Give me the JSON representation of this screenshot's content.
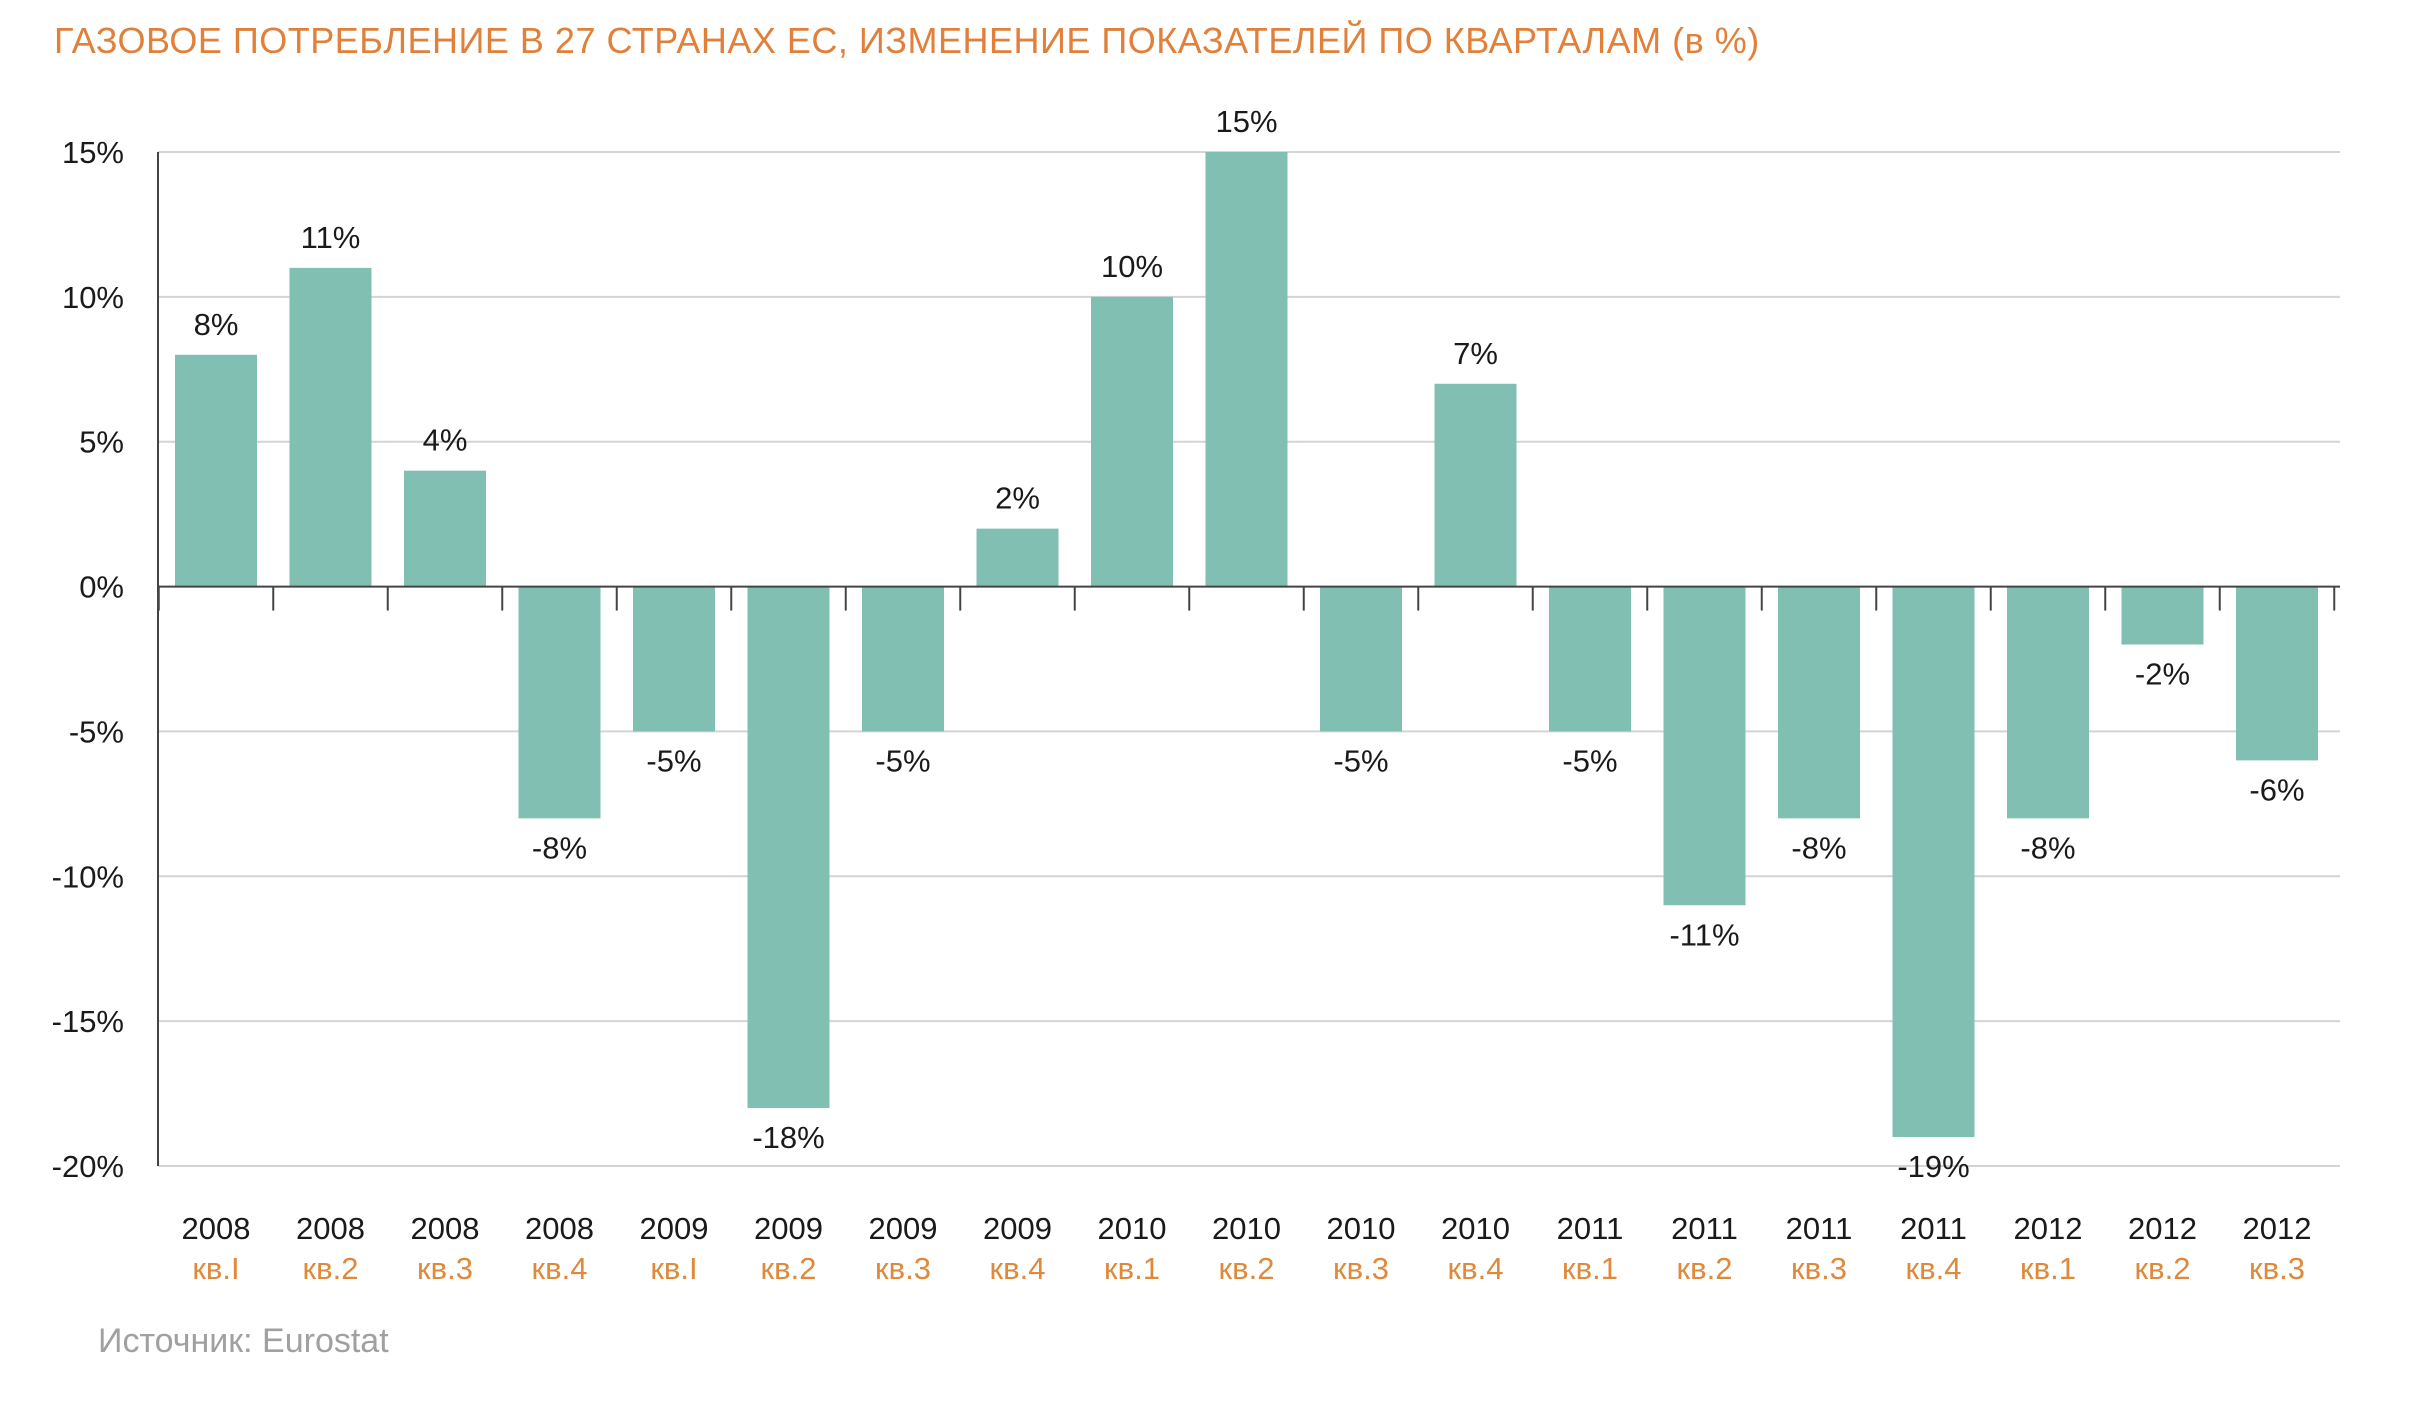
{
  "title": "ГАЗОВОЕ ПОТРЕБЛЕНИЕ В 27 СТРАНАХ ЕС, ИЗМЕНЕНИЕ ПОКАЗАТЕЛЕЙ ПО КВАРТАЛАМ (в %)",
  "source": "Источник: Eurostat",
  "colors": {
    "title": "#E0803A",
    "quarter_label": "#E0893A",
    "bar": "#82BFB3",
    "grid": "#D4D4D4",
    "axis": "#444444",
    "source": "#A0A0A0"
  },
  "chart_data": {
    "type": "bar",
    "title": "ГАЗОВОЕ ПОТРЕБЛЕНИЕ В 27 СТРАНАХ ЕС, ИЗМЕНЕНИЕ ПОКАЗАТЕЛЕЙ ПО КВАРТАЛАМ (в %)",
    "years": [
      "2008",
      "2008",
      "2008",
      "2008",
      "2009",
      "2009",
      "2009",
      "2009",
      "2010",
      "2010",
      "2010",
      "2010",
      "2011",
      "2011",
      "2011",
      "2011",
      "2012",
      "2012",
      "2012"
    ],
    "quarters": [
      "кв.I",
      "кв.2",
      "кв.3",
      "кв.4",
      "кв.I",
      "кв.2",
      "кв.3",
      "кв.4",
      "кв.1",
      "кв.2",
      "кв.3",
      "кв.4",
      "кв.1",
      "кв.2",
      "кв.3",
      "кв.4",
      "кв.1",
      "кв.2",
      "кв.3"
    ],
    "values": [
      8,
      11,
      4,
      -8,
      -5,
      -18,
      -5,
      2,
      10,
      15,
      -5,
      7,
      -5,
      -11,
      -8,
      -19,
      -8,
      -2,
      -6
    ],
    "value_labels": [
      "8%",
      "11%",
      "4%",
      "-8%",
      "-5%",
      "-18%",
      "-5%",
      "2%",
      "10%",
      "15%",
      "-5%",
      "7%",
      "-5%",
      "-11%",
      "-8%",
      "-19%",
      "-8%",
      "-2%",
      "-6%"
    ],
    "y_ticks": [
      15,
      10,
      5,
      0,
      -5,
      -10,
      -15,
      -20
    ],
    "y_tick_labels": [
      "15%",
      "10%",
      "5%",
      "0%",
      "-5%",
      "-10%",
      "-15%",
      "-20%"
    ],
    "ylim": [
      -20,
      15
    ],
    "grid": true,
    "legend": "none"
  }
}
